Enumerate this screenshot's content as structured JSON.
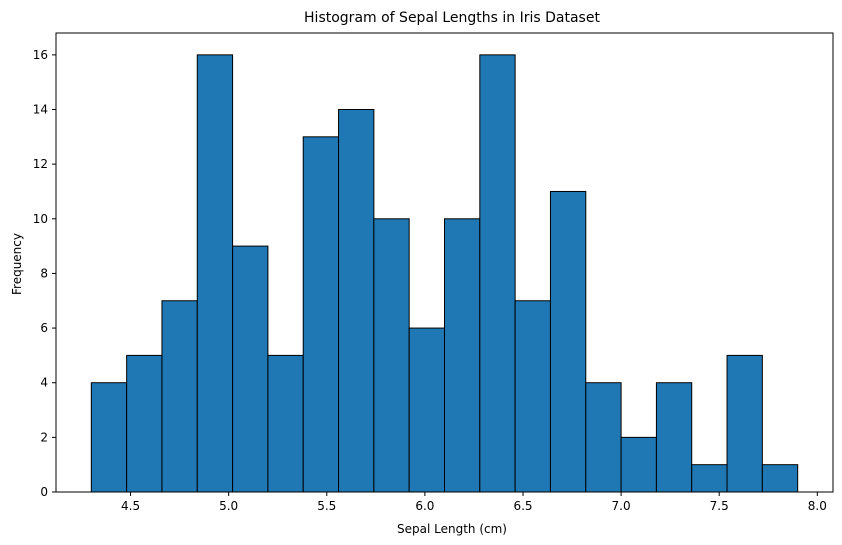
{
  "chart_data": {
    "type": "bar",
    "title": "Histogram of Sepal Lengths in Iris Dataset",
    "xlabel": "Sepal Length (cm)",
    "ylabel": "Frequency",
    "bin_edges": [
      4.3,
      4.48,
      4.66,
      4.84,
      5.02,
      5.2,
      5.38,
      5.56,
      5.74,
      5.92,
      6.1,
      6.28,
      6.46,
      6.64,
      6.82,
      7.0,
      7.18,
      7.36,
      7.54,
      7.72,
      7.9
    ],
    "values": [
      4,
      5,
      7,
      16,
      9,
      5,
      13,
      14,
      10,
      6,
      10,
      16,
      7,
      11,
      4,
      2,
      4,
      1,
      5,
      1
    ],
    "xlim": [
      4.12,
      8.08
    ],
    "ylim": [
      0,
      16.8
    ],
    "xticks": [
      4.5,
      5.0,
      5.5,
      6.0,
      6.5,
      7.0,
      7.5,
      8.0
    ],
    "xtick_labels": [
      "4.5",
      "5.0",
      "5.5",
      "6.0",
      "6.5",
      "7.0",
      "7.5",
      "8.0"
    ],
    "yticks": [
      0,
      2,
      4,
      6,
      8,
      10,
      12,
      14,
      16
    ],
    "ytick_labels": [
      "0",
      "2",
      "4",
      "6",
      "8",
      "10",
      "12",
      "14",
      "16"
    ],
    "bar_color": "#1f77b4",
    "edge_color": "#000000",
    "grid": false
  }
}
